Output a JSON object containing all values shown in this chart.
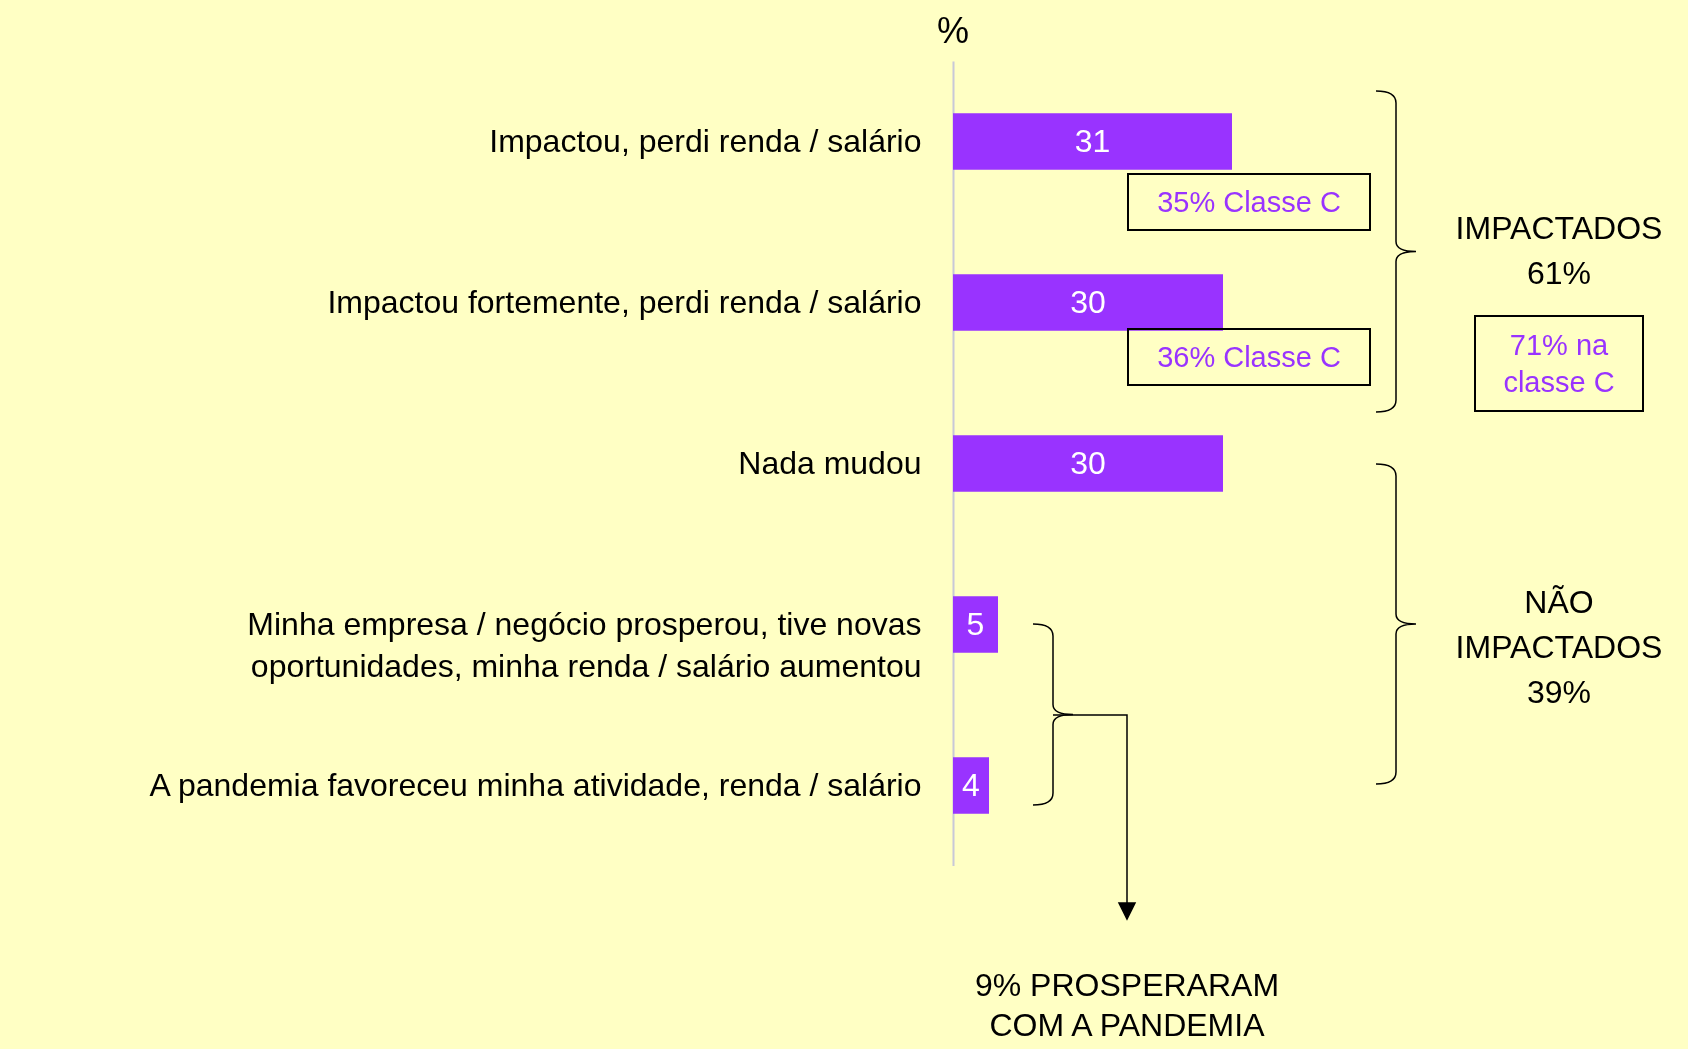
{
  "chart_data": {
    "type": "bar",
    "orientation": "horizontal",
    "title": "%",
    "categories": [
      "Impactou, perdi renda / salário",
      "Impactou fortemente, perdi renda / salário",
      "Nada mudou",
      "Minha empresa / negócio prosperou, tive novas oportunidades, minha renda / salário aumentou",
      "A pandemia favoreceu minha atividade, renda / salário"
    ],
    "values": [
      31,
      30,
      30,
      5,
      4
    ],
    "color": "#9933ff",
    "data_labels": true,
    "annotations": [
      "35% Classe C",
      "36% Classe C",
      "IMPACTADOS 61%",
      "71% na classe C",
      "NÃO IMPACTADOS 39%",
      "9% PROSPERARAM COM A PANDEMIA"
    ]
  }
}
